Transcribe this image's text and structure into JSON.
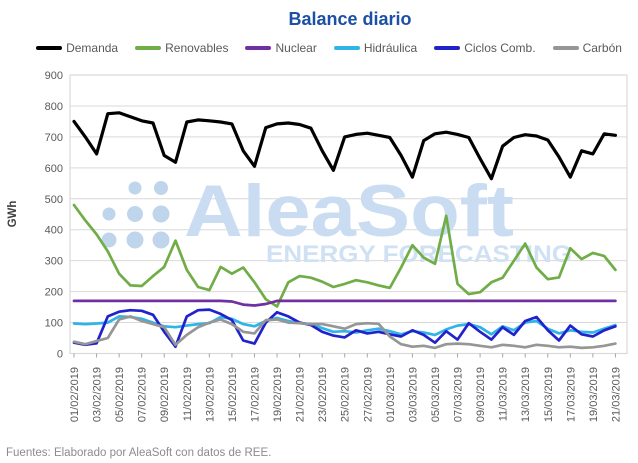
{
  "title": "Balance diario",
  "footer": "Fuentes: Elaborado por AleaSoft con datos de REE.",
  "watermark": {
    "brand": "AleaSoft",
    "tagline": "ENERGY FORECASTING"
  },
  "colors": {
    "title": "#1c4fa5",
    "axis_text": "#595959",
    "gridline": "#d9d9d9",
    "tick": "#a6a6a6",
    "watermark": "#c9dcf1",
    "footer_text": "#8c8c8c"
  },
  "chart_data": {
    "type": "line",
    "title": "Balance diario",
    "ylabel": "GWh",
    "xlabel": "",
    "ylim": [
      0,
      900
    ],
    "ytick_step": 100,
    "grid": true,
    "legend_position": "top",
    "x_tick_every": 2,
    "x": [
      "01/02/2019",
      "02/02/2019",
      "03/02/2019",
      "04/02/2019",
      "05/02/2019",
      "06/02/2019",
      "07/02/2019",
      "08/02/2019",
      "09/02/2019",
      "10/02/2019",
      "11/02/2019",
      "12/02/2019",
      "13/02/2019",
      "14/02/2019",
      "15/02/2019",
      "16/02/2019",
      "17/02/2019",
      "18/02/2019",
      "19/02/2019",
      "20/02/2019",
      "21/02/2019",
      "22/02/2019",
      "23/02/2019",
      "24/02/2019",
      "25/02/2019",
      "26/02/2019",
      "27/02/2019",
      "28/02/2019",
      "01/03/2019",
      "02/03/2019",
      "03/03/2019",
      "04/03/2019",
      "05/03/2019",
      "06/03/2019",
      "07/03/2019",
      "08/03/2019",
      "09/03/2019",
      "10/03/2019",
      "11/03/2019",
      "12/03/2019",
      "13/03/2019",
      "14/03/2019",
      "15/03/2019",
      "16/03/2019",
      "17/03/2019",
      "18/03/2019",
      "19/03/2019",
      "20/03/2019",
      "21/03/2019"
    ],
    "series": [
      {
        "name": "Demanda",
        "color": "#000000",
        "values": [
          750,
          700,
          645,
          775,
          778,
          765,
          752,
          745,
          640,
          618,
          748,
          755,
          752,
          748,
          742,
          655,
          605,
          730,
          742,
          745,
          740,
          728,
          655,
          592,
          700,
          708,
          712,
          705,
          698,
          640,
          570,
          688,
          710,
          715,
          708,
          698,
          630,
          565,
          670,
          698,
          707,
          703,
          690,
          635,
          570,
          655,
          645,
          710,
          705
        ]
      },
      {
        "name": "Renovables",
        "color": "#70ad47",
        "values": [
          480,
          430,
          385,
          330,
          258,
          220,
          218,
          250,
          280,
          365,
          270,
          215,
          205,
          280,
          258,
          278,
          230,
          175,
          152,
          230,
          250,
          245,
          232,
          215,
          225,
          237,
          230,
          220,
          212,
          278,
          350,
          310,
          290,
          445,
          225,
          192,
          198,
          230,
          245,
          300,
          355,
          278,
          240,
          246,
          340,
          305,
          325,
          315,
          270
        ]
      },
      {
        "name": "Nuclear",
        "color": "#7030a0",
        "values": [
          170,
          170,
          170,
          170,
          170,
          170,
          170,
          170,
          170,
          170,
          170,
          170,
          170,
          170,
          168,
          158,
          155,
          160,
          170,
          170,
          170,
          170,
          170,
          170,
          170,
          170,
          170,
          170,
          170,
          170,
          170,
          170,
          170,
          170,
          170,
          170,
          170,
          170,
          170,
          170,
          170,
          170,
          170,
          170,
          170,
          170,
          170,
          170,
          170
        ]
      },
      {
        "name": "Hidráulica",
        "color": "#2fb4e9",
        "values": [
          97,
          95,
          97,
          100,
          120,
          118,
          112,
          100,
          88,
          85,
          90,
          95,
          98,
          118,
          112,
          95,
          88,
          105,
          115,
          105,
          98,
          95,
          82,
          70,
          72,
          68,
          75,
          80,
          72,
          62,
          72,
          68,
          60,
          78,
          90,
          95,
          85,
          62,
          88,
          75,
          100,
          105,
          80,
          65,
          75,
          70,
          68,
          80,
          92
        ]
      },
      {
        "name": "Ciclos Comb.",
        "color": "#2222cc",
        "values": [
          35,
          28,
          33,
          120,
          135,
          140,
          138,
          125,
          70,
          22,
          120,
          140,
          142,
          128,
          108,
          42,
          32,
          100,
          133,
          120,
          100,
          92,
          70,
          58,
          52,
          75,
          65,
          70,
          62,
          55,
          75,
          60,
          35,
          72,
          45,
          98,
          70,
          45,
          85,
          60,
          105,
          118,
          75,
          42,
          90,
          62,
          55,
          75,
          88
        ]
      },
      {
        "name": "Carbón",
        "color": "#969696",
        "values": [
          38,
          30,
          40,
          50,
          110,
          120,
          105,
          95,
          85,
          28,
          60,
          85,
          100,
          110,
          95,
          70,
          65,
          108,
          110,
          100,
          98,
          95,
          95,
          88,
          80,
          95,
          98,
          96,
          55,
          30,
          22,
          25,
          18,
          30,
          32,
          30,
          25,
          20,
          28,
          25,
          20,
          28,
          25,
          20,
          22,
          18,
          20,
          25,
          32
        ]
      }
    ]
  }
}
